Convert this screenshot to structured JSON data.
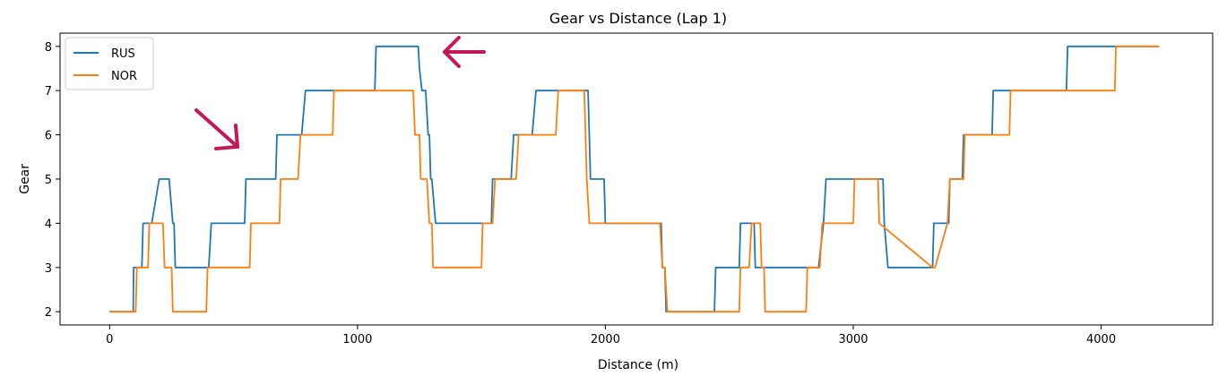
{
  "chart_data": {
    "type": "line",
    "title": "Gear vs Distance (Lap 1)",
    "xlabel": "Distance (m)",
    "ylabel": "Gear",
    "xlim": [
      -200,
      4450
    ],
    "ylim": [
      1.7,
      8.3
    ],
    "xticks": [
      0,
      1000,
      2000,
      3000,
      4000
    ],
    "yticks": [
      2,
      3,
      4,
      5,
      6,
      7,
      8
    ],
    "grid": false,
    "legend": "upper-left",
    "series": [
      {
        "name": "RUS",
        "color": "#1f77b4",
        "x": [
          0,
          95,
          97,
          130,
          135,
          165,
          170,
          200,
          205,
          240,
          255,
          260,
          265,
          400,
          410,
          545,
          550,
          670,
          675,
          775,
          790,
          1070,
          1075,
          1245,
          1250,
          1260,
          1275,
          1285,
          1290,
          1295,
          1300,
          1315,
          1540,
          1545,
          1575,
          1620,
          1630,
          1630,
          1705,
          1720,
          1930,
          1935,
          1940,
          1995,
          2000,
          2005,
          2225,
          2230,
          2240,
          2245,
          2255,
          2440,
          2445,
          2540,
          2545,
          2555,
          2560,
          2600,
          2605,
          2635,
          2640,
          2645,
          2860,
          2880,
          2890,
          3030,
          3035,
          3120,
          3125,
          3140,
          3320,
          3325,
          3385,
          3390,
          3440,
          3445,
          3560,
          3565,
          3860,
          3865,
          4235
        ],
        "y": [
          2,
          2,
          3,
          3,
          4,
          4,
          4,
          5,
          5,
          5,
          4,
          4,
          3,
          3,
          4,
          4,
          5,
          5,
          6,
          6,
          7,
          7,
          8,
          8,
          7.5,
          7,
          7,
          6,
          6,
          5,
          5,
          4,
          4,
          5,
          5,
          5,
          6,
          6,
          6,
          7,
          7,
          6,
          5,
          5,
          4,
          4,
          4,
          3,
          3,
          2,
          2,
          2,
          3,
          3,
          4,
          4,
          4,
          4,
          3,
          3,
          3,
          3,
          3,
          4,
          5,
          5,
          5,
          5,
          4,
          3,
          3,
          4,
          4,
          5,
          5,
          6,
          6,
          7,
          7,
          8,
          8
        ]
      },
      {
        "name": "NOR",
        "color": "#ff7f0e",
        "x": [
          0,
          105,
          110,
          155,
          160,
          215,
          222,
          250,
          255,
          390,
          395,
          565,
          570,
          685,
          690,
          760,
          770,
          900,
          905,
          1225,
          1232,
          1250,
          1255,
          1280,
          1290,
          1300,
          1305,
          1500,
          1505,
          1545,
          1555,
          1640,
          1650,
          1800,
          1810,
          1915,
          1920,
          1925,
          1935,
          2220,
          2230,
          2240,
          2250,
          2540,
          2545,
          2580,
          2590,
          2625,
          2630,
          2640,
          2645,
          2810,
          2815,
          2865,
          2875,
          3000,
          3005,
          3100,
          3105,
          3320,
          3330,
          3380,
          3390,
          3445,
          3450,
          3630,
          3635,
          4055,
          4060,
          4235
        ],
        "y": [
          2,
          2,
          3,
          3,
          4,
          4,
          3,
          3,
          2,
          2,
          3,
          3,
          4,
          4,
          5,
          5,
          6,
          6,
          7,
          7,
          6,
          6,
          5,
          5,
          4,
          4,
          3,
          3,
          4,
          4,
          5,
          5,
          6,
          6,
          7,
          7,
          6,
          5,
          4,
          4,
          3,
          3,
          2,
          2,
          3,
          3,
          4,
          4,
          3,
          3,
          2,
          2,
          3,
          3,
          4,
          4,
          5,
          5,
          4,
          3,
          3,
          4,
          5,
          5,
          6,
          6,
          7,
          7,
          8,
          8
        ]
      }
    ],
    "annotations": [
      {
        "type": "arrow",
        "color": "#c2185b",
        "direction": "down-right"
      },
      {
        "type": "arrow",
        "color": "#c2185b",
        "direction": "left"
      }
    ]
  }
}
